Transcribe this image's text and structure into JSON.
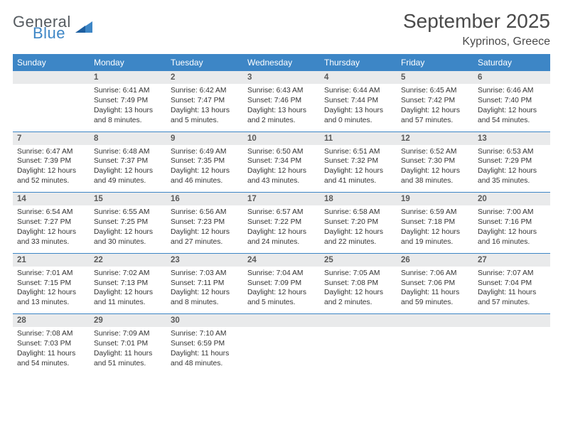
{
  "logo": {
    "general": "General",
    "blue": "Blue"
  },
  "title": "September 2025",
  "location": "Kyprinos, Greece",
  "colors": {
    "header_bg": "#3d86c6",
    "header_text": "#ffffff",
    "daynum_bg": "#e9eaeb",
    "text": "#333333",
    "rule": "#3d86c6",
    "logo_gray": "#555b60",
    "logo_blue": "#3d86c6"
  },
  "weekdays": [
    "Sunday",
    "Monday",
    "Tuesday",
    "Wednesday",
    "Thursday",
    "Friday",
    "Saturday"
  ],
  "weeks": [
    {
      "nums": [
        "",
        "1",
        "2",
        "3",
        "4",
        "5",
        "6"
      ],
      "cells": [
        null,
        {
          "sunrise": "Sunrise: 6:41 AM",
          "sunset": "Sunset: 7:49 PM",
          "day1": "Daylight: 13 hours",
          "day2": "and 8 minutes."
        },
        {
          "sunrise": "Sunrise: 6:42 AM",
          "sunset": "Sunset: 7:47 PM",
          "day1": "Daylight: 13 hours",
          "day2": "and 5 minutes."
        },
        {
          "sunrise": "Sunrise: 6:43 AM",
          "sunset": "Sunset: 7:46 PM",
          "day1": "Daylight: 13 hours",
          "day2": "and 2 minutes."
        },
        {
          "sunrise": "Sunrise: 6:44 AM",
          "sunset": "Sunset: 7:44 PM",
          "day1": "Daylight: 13 hours",
          "day2": "and 0 minutes."
        },
        {
          "sunrise": "Sunrise: 6:45 AM",
          "sunset": "Sunset: 7:42 PM",
          "day1": "Daylight: 12 hours",
          "day2": "and 57 minutes."
        },
        {
          "sunrise": "Sunrise: 6:46 AM",
          "sunset": "Sunset: 7:40 PM",
          "day1": "Daylight: 12 hours",
          "day2": "and 54 minutes."
        }
      ]
    },
    {
      "nums": [
        "7",
        "8",
        "9",
        "10",
        "11",
        "12",
        "13"
      ],
      "cells": [
        {
          "sunrise": "Sunrise: 6:47 AM",
          "sunset": "Sunset: 7:39 PM",
          "day1": "Daylight: 12 hours",
          "day2": "and 52 minutes."
        },
        {
          "sunrise": "Sunrise: 6:48 AM",
          "sunset": "Sunset: 7:37 PM",
          "day1": "Daylight: 12 hours",
          "day2": "and 49 minutes."
        },
        {
          "sunrise": "Sunrise: 6:49 AM",
          "sunset": "Sunset: 7:35 PM",
          "day1": "Daylight: 12 hours",
          "day2": "and 46 minutes."
        },
        {
          "sunrise": "Sunrise: 6:50 AM",
          "sunset": "Sunset: 7:34 PM",
          "day1": "Daylight: 12 hours",
          "day2": "and 43 minutes."
        },
        {
          "sunrise": "Sunrise: 6:51 AM",
          "sunset": "Sunset: 7:32 PM",
          "day1": "Daylight: 12 hours",
          "day2": "and 41 minutes."
        },
        {
          "sunrise": "Sunrise: 6:52 AM",
          "sunset": "Sunset: 7:30 PM",
          "day1": "Daylight: 12 hours",
          "day2": "and 38 minutes."
        },
        {
          "sunrise": "Sunrise: 6:53 AM",
          "sunset": "Sunset: 7:29 PM",
          "day1": "Daylight: 12 hours",
          "day2": "and 35 minutes."
        }
      ]
    },
    {
      "nums": [
        "14",
        "15",
        "16",
        "17",
        "18",
        "19",
        "20"
      ],
      "cells": [
        {
          "sunrise": "Sunrise: 6:54 AM",
          "sunset": "Sunset: 7:27 PM",
          "day1": "Daylight: 12 hours",
          "day2": "and 33 minutes."
        },
        {
          "sunrise": "Sunrise: 6:55 AM",
          "sunset": "Sunset: 7:25 PM",
          "day1": "Daylight: 12 hours",
          "day2": "and 30 minutes."
        },
        {
          "sunrise": "Sunrise: 6:56 AM",
          "sunset": "Sunset: 7:23 PM",
          "day1": "Daylight: 12 hours",
          "day2": "and 27 minutes."
        },
        {
          "sunrise": "Sunrise: 6:57 AM",
          "sunset": "Sunset: 7:22 PM",
          "day1": "Daylight: 12 hours",
          "day2": "and 24 minutes."
        },
        {
          "sunrise": "Sunrise: 6:58 AM",
          "sunset": "Sunset: 7:20 PM",
          "day1": "Daylight: 12 hours",
          "day2": "and 22 minutes."
        },
        {
          "sunrise": "Sunrise: 6:59 AM",
          "sunset": "Sunset: 7:18 PM",
          "day1": "Daylight: 12 hours",
          "day2": "and 19 minutes."
        },
        {
          "sunrise": "Sunrise: 7:00 AM",
          "sunset": "Sunset: 7:16 PM",
          "day1": "Daylight: 12 hours",
          "day2": "and 16 minutes."
        }
      ]
    },
    {
      "nums": [
        "21",
        "22",
        "23",
        "24",
        "25",
        "26",
        "27"
      ],
      "cells": [
        {
          "sunrise": "Sunrise: 7:01 AM",
          "sunset": "Sunset: 7:15 PM",
          "day1": "Daylight: 12 hours",
          "day2": "and 13 minutes."
        },
        {
          "sunrise": "Sunrise: 7:02 AM",
          "sunset": "Sunset: 7:13 PM",
          "day1": "Daylight: 12 hours",
          "day2": "and 11 minutes."
        },
        {
          "sunrise": "Sunrise: 7:03 AM",
          "sunset": "Sunset: 7:11 PM",
          "day1": "Daylight: 12 hours",
          "day2": "and 8 minutes."
        },
        {
          "sunrise": "Sunrise: 7:04 AM",
          "sunset": "Sunset: 7:09 PM",
          "day1": "Daylight: 12 hours",
          "day2": "and 5 minutes."
        },
        {
          "sunrise": "Sunrise: 7:05 AM",
          "sunset": "Sunset: 7:08 PM",
          "day1": "Daylight: 12 hours",
          "day2": "and 2 minutes."
        },
        {
          "sunrise": "Sunrise: 7:06 AM",
          "sunset": "Sunset: 7:06 PM",
          "day1": "Daylight: 11 hours",
          "day2": "and 59 minutes."
        },
        {
          "sunrise": "Sunrise: 7:07 AM",
          "sunset": "Sunset: 7:04 PM",
          "day1": "Daylight: 11 hours",
          "day2": "and 57 minutes."
        }
      ]
    },
    {
      "nums": [
        "28",
        "29",
        "30",
        "",
        "",
        "",
        ""
      ],
      "cells": [
        {
          "sunrise": "Sunrise: 7:08 AM",
          "sunset": "Sunset: 7:03 PM",
          "day1": "Daylight: 11 hours",
          "day2": "and 54 minutes."
        },
        {
          "sunrise": "Sunrise: 7:09 AM",
          "sunset": "Sunset: 7:01 PM",
          "day1": "Daylight: 11 hours",
          "day2": "and 51 minutes."
        },
        {
          "sunrise": "Sunrise: 7:10 AM",
          "sunset": "Sunset: 6:59 PM",
          "day1": "Daylight: 11 hours",
          "day2": "and 48 minutes."
        },
        null,
        null,
        null,
        null
      ]
    }
  ]
}
